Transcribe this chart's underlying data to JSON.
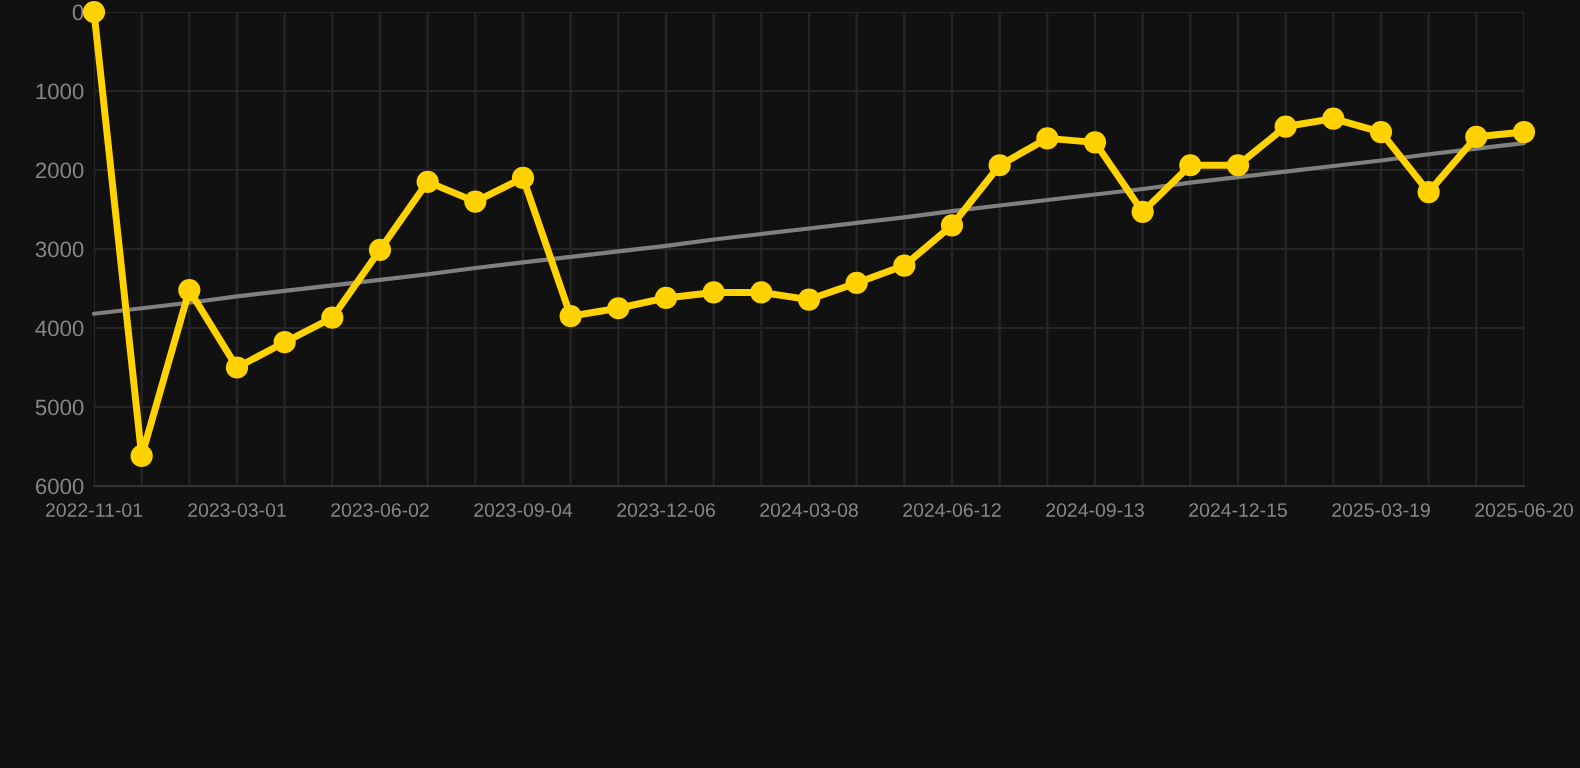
{
  "chart_data": {
    "type": "line",
    "categories": [
      "2022-11-01",
      null,
      null,
      "2023-03-01",
      null,
      null,
      "2023-06-02",
      null,
      null,
      "2023-09-04",
      null,
      null,
      "2023-12-06",
      null,
      null,
      "2024-03-08",
      null,
      null,
      "2024-06-12",
      null,
      null,
      "2024-09-13",
      null,
      null,
      "2024-12-15",
      null,
      null,
      "2025-03-19",
      null,
      null,
      "2025-06-20"
    ],
    "series": [
      {
        "color": "#ffd200",
        "marker": "circle",
        "values": [
          0,
          5620,
          3520,
          4500,
          4180,
          3870,
          3010,
          2150,
          2400,
          2100,
          3850,
          3750,
          3620,
          3550,
          3550,
          3640,
          3430,
          3210,
          2700,
          1940,
          1600,
          1650,
          2530,
          1940,
          1940,
          1450,
          1350,
          1520,
          2280,
          1580,
          1520
        ]
      },
      {
        "color": "#808080",
        "marker": "none",
        "values": [
          3820,
          3750,
          3680,
          3600,
          3530,
          3460,
          3390,
          3320,
          3240,
          3170,
          3100,
          3030,
          2960,
          2880,
          2810,
          2740,
          2670,
          2600,
          2520,
          2450,
          2380,
          2310,
          2240,
          2160,
          2090,
          2020,
          1950,
          1880,
          1800,
          1730,
          1660
        ]
      }
    ],
    "ylim": [
      6000,
      0
    ],
    "yticks": [
      0,
      1000,
      2000,
      3000,
      4000,
      5000,
      6000
    ],
    "grid": true,
    "line_style": "solid"
  }
}
